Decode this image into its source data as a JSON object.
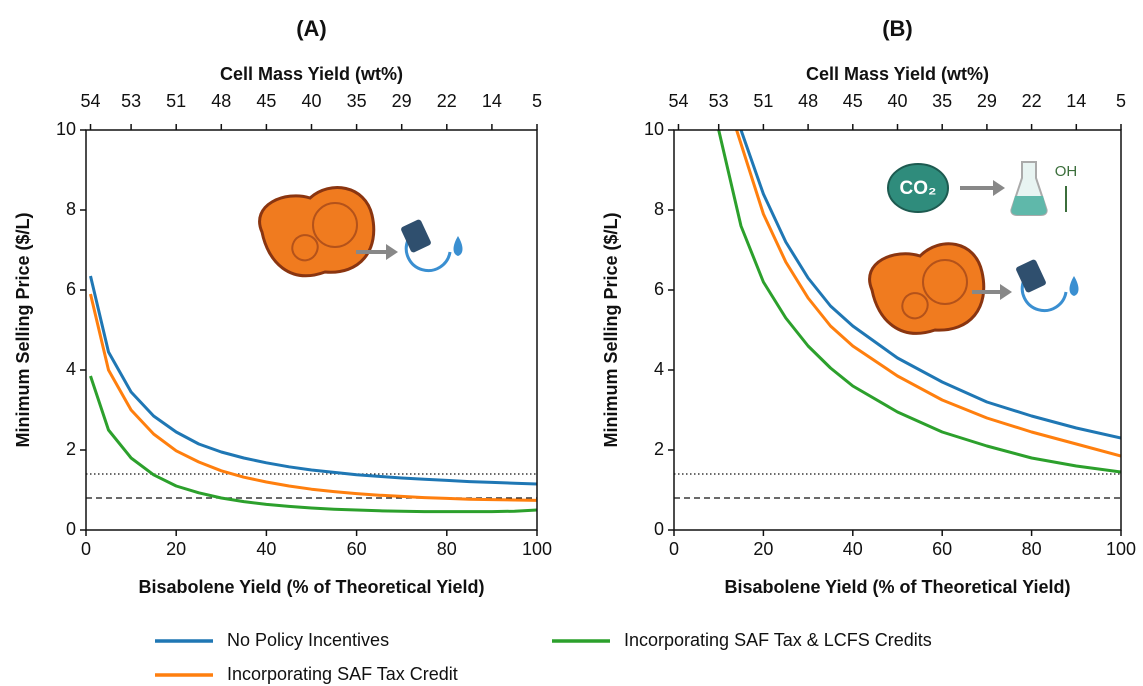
{
  "chart_data": [
    {
      "type": "line",
      "title": "(A)",
      "xlabel": "Bisabolene Yield (% of Theoretical Yield)",
      "ylabel": "Minimum Selling Price ($/L)",
      "x2label": "Cell Mass Yield (wt%)",
      "xlim": [
        0,
        100
      ],
      "xticks": [
        0,
        20,
        40,
        60,
        80,
        100
      ],
      "ylim": [
        0,
        10
      ],
      "yticks": [
        0,
        2,
        4,
        6,
        8,
        10
      ],
      "x2ticks": [
        {
          "value": 1,
          "label": "54"
        },
        {
          "value": 10,
          "label": "53"
        },
        {
          "value": 20,
          "label": "51"
        },
        {
          "value": 30,
          "label": "48"
        },
        {
          "value": 40,
          "label": "45"
        },
        {
          "value": 50,
          "label": "40"
        },
        {
          "value": 60,
          "label": "35"
        },
        {
          "value": 70,
          "label": "29"
        },
        {
          "value": 80,
          "label": "22"
        },
        {
          "value": 90,
          "label": "14"
        },
        {
          "value": 100,
          "label": "5"
        }
      ],
      "reference_lines": [
        {
          "value": 1.4,
          "style": "dotted"
        },
        {
          "value": 0.8,
          "style": "dashed"
        }
      ],
      "series": [
        {
          "name": "No Policy Incentives",
          "color": "#1f77b4",
          "x": [
            1,
            5,
            10,
            15,
            20,
            25,
            30,
            35,
            40,
            45,
            50,
            55,
            60,
            65,
            70,
            75,
            80,
            85,
            90,
            95,
            100
          ],
          "values": [
            6.35,
            4.45,
            3.45,
            2.85,
            2.45,
            2.15,
            1.95,
            1.8,
            1.68,
            1.58,
            1.5,
            1.44,
            1.38,
            1.34,
            1.3,
            1.27,
            1.24,
            1.21,
            1.19,
            1.17,
            1.15
          ]
        },
        {
          "name": "Incorporating SAF Tax Credit",
          "color": "#ff7f0e",
          "x": [
            1,
            5,
            10,
            15,
            20,
            25,
            30,
            35,
            40,
            45,
            50,
            55,
            60,
            65,
            70,
            75,
            80,
            85,
            90,
            95,
            100
          ],
          "values": [
            5.9,
            4.0,
            3.0,
            2.4,
            1.98,
            1.7,
            1.48,
            1.32,
            1.2,
            1.1,
            1.02,
            0.96,
            0.91,
            0.87,
            0.84,
            0.81,
            0.79,
            0.77,
            0.76,
            0.75,
            0.74
          ]
        },
        {
          "name": "Incorporating SAF Tax & LCFS Credits",
          "color": "#2ca02c",
          "x": [
            1,
            5,
            10,
            15,
            20,
            25,
            30,
            35,
            40,
            45,
            50,
            55,
            60,
            65,
            70,
            75,
            80,
            85,
            90,
            95,
            100
          ],
          "values": [
            3.85,
            2.5,
            1.8,
            1.38,
            1.1,
            0.93,
            0.8,
            0.71,
            0.64,
            0.59,
            0.55,
            0.52,
            0.5,
            0.48,
            0.47,
            0.46,
            0.46,
            0.46,
            0.46,
            0.47,
            0.5
          ]
        }
      ]
    },
    {
      "type": "line",
      "title": "(B)",
      "xlabel": "Bisabolene Yield (% of Theoretical Yield)",
      "ylabel": "Minimum Selling Price ($/L)",
      "x2label": "Cell Mass Yield (wt%)",
      "xlim": [
        0,
        100
      ],
      "xticks": [
        0,
        20,
        40,
        60,
        80,
        100
      ],
      "ylim": [
        0,
        10
      ],
      "yticks": [
        0,
        2,
        4,
        6,
        8,
        10
      ],
      "x2ticks": [
        {
          "value": 1,
          "label": "54"
        },
        {
          "value": 10,
          "label": "53"
        },
        {
          "value": 20,
          "label": "51"
        },
        {
          "value": 30,
          "label": "48"
        },
        {
          "value": 40,
          "label": "45"
        },
        {
          "value": 50,
          "label": "40"
        },
        {
          "value": 60,
          "label": "35"
        },
        {
          "value": 70,
          "label": "29"
        },
        {
          "value": 80,
          "label": "22"
        },
        {
          "value": 90,
          "label": "14"
        },
        {
          "value": 100,
          "label": "5"
        }
      ],
      "reference_lines": [
        {
          "value": 1.4,
          "style": "dotted"
        },
        {
          "value": 0.8,
          "style": "dashed"
        }
      ],
      "icon_labels": [
        "CO₂",
        "OH"
      ],
      "series": [
        {
          "color": "#1f77b4",
          "x": [
            15,
            20,
            25,
            30,
            35,
            40,
            50,
            60,
            70,
            80,
            90,
            100
          ],
          "values": [
            10,
            8.4,
            7.2,
            6.3,
            5.6,
            5.1,
            4.3,
            3.7,
            3.2,
            2.85,
            2.55,
            2.3
          ]
        },
        {
          "color": "#ff7f0e",
          "x": [
            14,
            20,
            25,
            30,
            35,
            40,
            50,
            60,
            70,
            80,
            90,
            100
          ],
          "values": [
            10,
            7.9,
            6.7,
            5.8,
            5.1,
            4.6,
            3.85,
            3.25,
            2.8,
            2.45,
            2.15,
            1.85
          ]
        },
        {
          "color": "#2ca02c",
          "x": [
            10,
            15,
            20,
            25,
            30,
            35,
            40,
            50,
            60,
            70,
            80,
            90,
            100
          ],
          "values": [
            10,
            7.6,
            6.2,
            5.3,
            4.6,
            4.05,
            3.6,
            2.95,
            2.45,
            2.1,
            1.8,
            1.6,
            1.45
          ]
        }
      ]
    }
  ]
}
